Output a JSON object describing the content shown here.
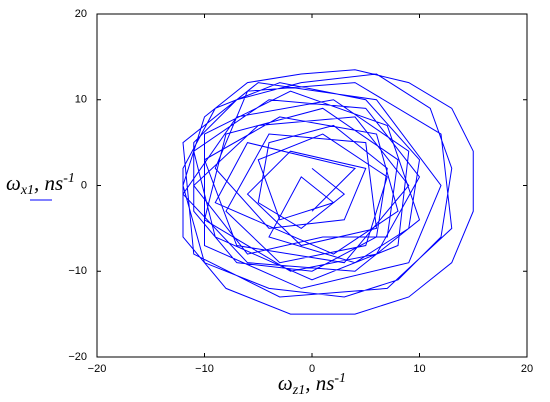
{
  "chart_data": {
    "type": "line",
    "xlabel": {
      "main": "ω",
      "sub": "z1",
      "unit": ", ns",
      "sup": "-1"
    },
    "ylabel": {
      "main": "ω",
      "sub": "x1",
      "unit": ", ns",
      "sup": "-1"
    },
    "color": "#0000ff",
    "xlim": [
      -20,
      20
    ],
    "ylim": [
      -20,
      20
    ],
    "xticks": [
      {
        "value": -20,
        "label": "−20"
      },
      {
        "value": -10,
        "label": "−10"
      },
      0,
      10,
      20
    ],
    "yticks": [
      {
        "value": -20,
        "label": "−20"
      },
      {
        "value": -10,
        "label": "−10"
      },
      0,
      10,
      20
    ],
    "x": [
      0,
      4,
      -6,
      -9,
      2,
      8,
      6,
      -3,
      -10,
      -7,
      3,
      9,
      4,
      -5,
      -11,
      -6,
      1,
      7,
      8,
      1,
      -8,
      -10,
      -2,
      6,
      10,
      5,
      -4,
      -11,
      -9,
      0,
      8,
      9,
      2,
      -7,
      -12,
      -6,
      4,
      10,
      7,
      -2,
      -10,
      -10,
      -1,
      9,
      12,
      6,
      -5,
      -12,
      -11,
      -3,
      7,
      13,
      12,
      4,
      -6,
      -9,
      -4,
      3,
      5,
      -2,
      -6,
      -1,
      6,
      5,
      -4,
      -8,
      -3,
      5,
      7,
      1,
      -5,
      -3,
      2,
      -1,
      -4,
      4,
      9,
      10,
      5,
      -3,
      -9,
      -12,
      -12,
      -8,
      -2,
      4,
      9,
      13,
      15,
      15,
      13,
      9,
      4,
      -1,
      -6,
      -10,
      -12,
      -10,
      -4,
      3,
      8,
      12,
      13,
      11,
      6,
      -1,
      -7,
      -11,
      -11,
      -7,
      0,
      6,
      7,
      2,
      -4,
      -5,
      -1,
      3,
      0
    ],
    "values": [
      -3,
      2,
      5,
      -2,
      -8,
      -3,
      6,
      8,
      3,
      -7,
      -9,
      0,
      8,
      7,
      0,
      -8,
      -6,
      -6,
      3,
      9,
      6,
      -4,
      -10,
      -8,
      1,
      9,
      10,
      4,
      -6,
      -11,
      -7,
      4,
      10,
      8,
      -1,
      -9,
      -10,
      -4,
      7,
      11,
      6,
      -7,
      -12,
      -9,
      0,
      10,
      12,
      5,
      -8,
      -13,
      -12,
      -5,
      6,
      12,
      11,
      2,
      -5,
      -4,
      2,
      4,
      -1,
      -7,
      -5,
      5,
      6,
      -3,
      -9,
      -7,
      1,
      6,
      3,
      -4,
      -2,
      1,
      -6,
      -9,
      -5,
      3,
      10,
      12,
      9,
      2,
      -6,
      -12,
      -15,
      -15,
      -13,
      -9,
      -3,
      4,
      9,
      12,
      13.5,
      13,
      12,
      8,
      0,
      -9,
      -12,
      -13,
      -11,
      -6,
      2,
      9,
      13,
      12,
      10,
      5,
      -3,
      -9,
      -10,
      -6,
      2,
      7,
      5,
      -2,
      -5,
      -1,
      2
    ]
  }
}
